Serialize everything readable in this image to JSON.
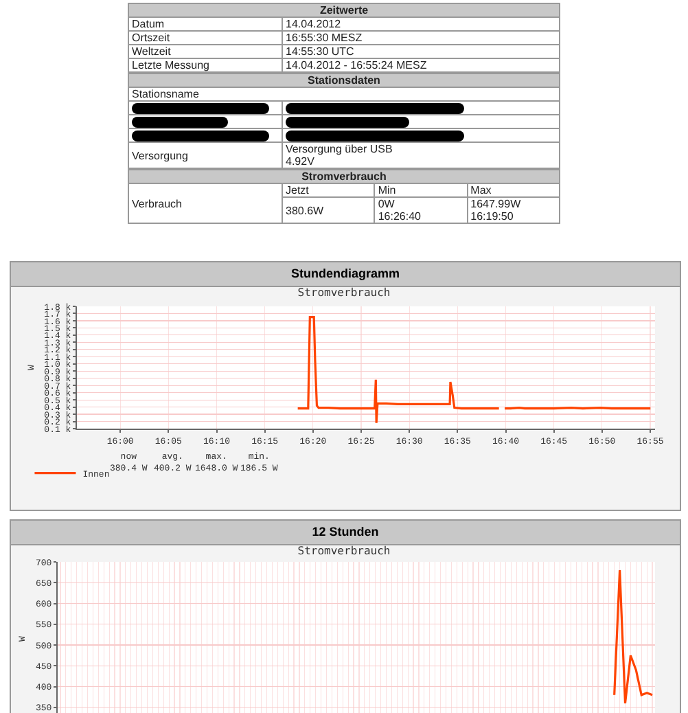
{
  "chart_data": [
    {
      "type": "other",
      "title": "Zeitwerte",
      "y_categories": [
        "Datum",
        "Ortszeit",
        "Weltzeit",
        "Letzte Messung"
      ],
      "cell_labels": [
        [
          "14.04.2012"
        ],
        [
          "16:55:30 MESZ"
        ],
        [
          "14:55:30 UTC"
        ],
        [
          "14.04.2012 - 16:55:24 MESZ"
        ]
      ]
    },
    {
      "type": "other",
      "title": "Stationsdaten",
      "y_categories": [
        "Stationsname",
        null,
        null,
        null,
        "Versorgung"
      ],
      "cell_labels": [
        [
          null
        ],
        [
          null
        ],
        [
          null
        ],
        [
          null
        ],
        [
          "Versorgung über USB\n4.92V"
        ]
      ]
    },
    {
      "type": "other",
      "title": "Stromverbrauch",
      "categories": [
        "Jetzt",
        "Min",
        "Max"
      ],
      "y_categories": [
        "Verbrauch"
      ],
      "cell_labels": [
        [
          "380.6W",
          "0W\n16:26:40",
          "1647.99W\n16:19:50"
        ]
      ]
    },
    {
      "type": "line",
      "title": "Stundendiagramm",
      "subtitle": "Stromverbrauch",
      "ylabel": "W",
      "grid": true,
      "legend": "bottom left",
      "marker": "none",
      "line_style": "solid",
      "xlim": [
        15.925,
        16.925
      ],
      "xticks": [
        {
          "value": 16,
          "label": "16:00"
        },
        {
          "value": 16.0833,
          "label": "16:05"
        },
        {
          "value": 16.1667,
          "label": "16:10"
        },
        {
          "value": 16.25,
          "label": "16:15"
        },
        {
          "value": 16.3333,
          "label": "16:20"
        },
        {
          "value": 16.4167,
          "label": "16:25"
        },
        {
          "value": 16.5,
          "label": "16:30"
        },
        {
          "value": 16.5833,
          "label": "16:35"
        },
        {
          "value": 16.6667,
          "label": "16:40"
        },
        {
          "value": 16.75,
          "label": "16:45"
        },
        {
          "value": 16.8333,
          "label": "16:50"
        },
        {
          "value": 16.9167,
          "label": "16:55"
        }
      ],
      "ylim": [
        100,
        1800
      ],
      "yticks": [
        {
          "value": 100,
          "label": "0.1 k"
        },
        {
          "value": 200,
          "label": "0.2 k"
        },
        {
          "value": 300,
          "label": "0.3 k"
        },
        {
          "value": 400,
          "label": "0.4 k"
        },
        {
          "value": 500,
          "label": "0.5 k"
        },
        {
          "value": 600,
          "label": "0.6 k"
        },
        {
          "value": 700,
          "label": "0.7 k"
        },
        {
          "value": 800,
          "label": "0.8 k"
        },
        {
          "value": 900,
          "label": "0.9 k"
        },
        {
          "value": 1000,
          "label": "1.0 k"
        },
        {
          "value": 1100,
          "label": "1.1 k"
        },
        {
          "value": 1200,
          "label": "1.2 k"
        },
        {
          "value": 1300,
          "label": "1.3 k"
        },
        {
          "value": 1400,
          "label": "1.4 k"
        },
        {
          "value": 1500,
          "label": "1.5 k"
        },
        {
          "value": 1600,
          "label": "1.6 k"
        },
        {
          "value": 1700,
          "label": "1.7 k"
        },
        {
          "value": 1800,
          "label": "1.8 k"
        }
      ],
      "annotations": [
        "now\n380.4 W",
        "avg.\n400.2 W",
        "max.\n1648.0 W",
        "min.\n186.5 W"
      ],
      "series": [
        {
          "name": "Innen",
          "color": "#ff4400",
          "x": [
            16.307,
            16.318,
            16.325,
            16.328,
            16.335,
            16.337,
            16.34,
            16.343,
            16.35,
            16.36,
            16.38,
            16.4,
            16.42,
            16.44,
            16.442,
            16.443,
            16.445,
            16.46,
            16.48,
            16.5,
            16.52,
            16.55,
            16.57,
            16.571,
            16.575,
            16.578,
            16.59,
            16.62,
            16.64,
            16.655,
            16.657,
            16.665,
            16.675,
            16.69,
            16.7,
            16.75,
            16.78,
            16.8,
            16.83,
            16.85,
            16.88,
            16.9,
            16.917
          ],
          "values": [
            380,
            380,
            380,
            1650,
            1650,
            1050,
            420,
            390,
            390,
            390,
            380,
            380,
            380,
            380,
            780,
            180,
            450,
            450,
            440,
            440,
            440,
            440,
            440,
            750,
            560,
            390,
            380,
            380,
            380,
            380,
            null,
            380,
            380,
            390,
            380,
            380,
            390,
            380,
            390,
            380,
            380,
            380,
            380
          ]
        }
      ]
    },
    {
      "type": "line",
      "title": "12 Stunden",
      "subtitle": "Stromverbrauch",
      "ylabel": "W",
      "grid": true,
      "marker": "none",
      "line_style": "solid",
      "tick_labels": "y",
      "categories": [
        null,
        null,
        null,
        null,
        null,
        null,
        null,
        null,
        null,
        null,
        null,
        null,
        null,
        null,
        null,
        null,
        null,
        null,
        null,
        null,
        null,
        null,
        null,
        null,
        null,
        null,
        null,
        null,
        null,
        null,
        null,
        null,
        null,
        null,
        null,
        null,
        null,
        null,
        null,
        null,
        null,
        null,
        null,
        null,
        null,
        null,
        null,
        null,
        null,
        null,
        null,
        null,
        null,
        null,
        null,
        null,
        null,
        null,
        null,
        null,
        null,
        null,
        null,
        null,
        null,
        null,
        null,
        null,
        null,
        null,
        null,
        null,
        null,
        null,
        null,
        null,
        null,
        null,
        null,
        null,
        null,
        null,
        null,
        null,
        null,
        null,
        null,
        null,
        null,
        null,
        null,
        null,
        null,
        null,
        null,
        null,
        null,
        null,
        null,
        null,
        null,
        null,
        null,
        null,
        null,
        null,
        null,
        null,
        null,
        null
      ],
      "ylim": [
        330,
        700
      ],
      "yticks": [
        350,
        400,
        450,
        500,
        550,
        600,
        650,
        700
      ],
      "series": [
        {
          "color": "#ff4400",
          "values": [
            null,
            null,
            null,
            null,
            null,
            null,
            null,
            null,
            null,
            null,
            null,
            null,
            null,
            null,
            null,
            null,
            null,
            null,
            null,
            null,
            null,
            null,
            null,
            null,
            null,
            null,
            null,
            null,
            null,
            null,
            null,
            null,
            null,
            null,
            null,
            null,
            null,
            null,
            null,
            null,
            null,
            null,
            null,
            null,
            null,
            null,
            null,
            null,
            null,
            null,
            null,
            null,
            null,
            null,
            null,
            null,
            null,
            null,
            null,
            null,
            null,
            null,
            null,
            null,
            null,
            null,
            null,
            null,
            null,
            null,
            null,
            null,
            null,
            null,
            null,
            null,
            null,
            null,
            null,
            null,
            null,
            null,
            null,
            null,
            null,
            null,
            null,
            null,
            null,
            null,
            null,
            null,
            null,
            null,
            null,
            null,
            null,
            null,
            null,
            null,
            null,
            null,
            380,
            680,
            360,
            475,
            440,
            380,
            385,
            380
          ]
        }
      ]
    }
  ]
}
